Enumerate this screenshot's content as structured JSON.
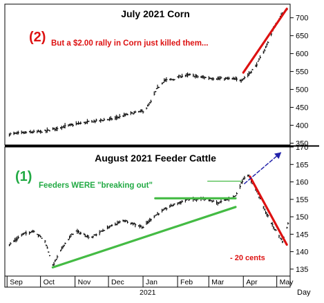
{
  "chart_data": [
    {
      "type": "ohlc",
      "title": "July 2021 Corn",
      "ylim": [
        345,
        738
      ],
      "yticks": [
        350,
        400,
        450,
        500,
        550,
        600,
        650,
        700
      ],
      "series_color": "#000000",
      "close_path": [
        [
          "2020-09-03",
          375
        ],
        [
          "2020-09-20",
          380
        ],
        [
          "2020-10-05",
          383
        ],
        [
          "2020-10-20",
          395
        ],
        [
          "2020-11-05",
          405
        ],
        [
          "2020-11-20",
          412
        ],
        [
          "2020-12-05",
          418
        ],
        [
          "2020-12-20",
          432
        ],
        [
          "2021-01-02",
          440
        ],
        [
          "2021-01-08",
          465
        ],
        [
          "2021-01-13",
          500
        ],
        [
          "2021-01-20",
          525
        ],
        [
          "2021-01-28",
          528
        ],
        [
          "2021-02-05",
          538
        ],
        [
          "2021-02-12",
          540
        ],
        [
          "2021-02-20",
          535
        ],
        [
          "2021-03-01",
          532
        ],
        [
          "2021-03-10",
          530
        ],
        [
          "2021-03-20",
          530
        ],
        [
          "2021-03-30",
          526
        ],
        [
          "2021-04-05",
          540
        ],
        [
          "2021-04-12",
          565
        ],
        [
          "2021-04-20",
          610
        ],
        [
          "2021-04-28",
          670
        ],
        [
          "2021-05-06",
          712
        ],
        [
          "2021-05-10",
          725
        ]
      ],
      "annotations": [
        {
          "label": "(2)",
          "color": "#dd1111"
        },
        {
          "text": "But a $2.00 rally in Corn just killed them...",
          "color": "#dd1111"
        }
      ],
      "trendlines": [
        {
          "name": "rally-line",
          "color": "#dd1111",
          "points": [
            [
              "2021-04-01",
              547
            ],
            [
              "2021-05-10",
              725
            ]
          ]
        }
      ]
    },
    {
      "type": "ohlc",
      "title": "August 2021 Feeder Cattle",
      "ylim": [
        133,
        170
      ],
      "yticks": [
        135,
        140,
        145,
        150,
        155,
        160,
        165,
        170
      ],
      "series_color": "#000000",
      "close_path": [
        [
          "2020-09-03",
          142
        ],
        [
          "2020-09-15",
          145
        ],
        [
          "2020-09-25",
          146
        ],
        [
          "2020-10-05",
          143
        ],
        [
          "2020-10-12",
          136
        ],
        [
          "2020-10-22",
          142
        ],
        [
          "2020-11-01",
          146
        ],
        [
          "2020-11-15",
          144
        ],
        [
          "2020-12-01",
          147
        ],
        [
          "2020-12-15",
          149
        ],
        [
          "2021-01-01",
          147
        ],
        [
          "2021-01-10",
          150
        ],
        [
          "2021-01-25",
          153
        ],
        [
          "2021-02-10",
          155
        ],
        [
          "2021-02-25",
          155
        ],
        [
          "2021-03-10",
          154
        ],
        [
          "2021-03-25",
          156
        ],
        [
          "2021-04-01",
          161
        ],
        [
          "2021-04-05",
          162
        ],
        [
          "2021-04-12",
          158
        ],
        [
          "2021-04-20",
          152
        ],
        [
          "2021-04-28",
          147
        ],
        [
          "2021-05-06",
          143
        ],
        [
          "2021-05-11",
          148
        ]
      ],
      "annotations": [
        {
          "label": "(1)",
          "color": "#22aa44"
        },
        {
          "text": "Feeders WERE \"breaking out\"",
          "color": "#22aa44"
        },
        {
          "text": "- 20 cents",
          "color": "#dd1111"
        }
      ],
      "trendlines": [
        {
          "name": "uptrend-support",
          "color": "#44bb44",
          "points": [
            [
              "2020-10-12",
              135.5
            ],
            [
              "2021-03-25",
              152.8
            ]
          ]
        },
        {
          "name": "breakout-resistance",
          "color": "#44bb44",
          "points": [
            [
              "2021-01-12",
              155.3
            ],
            [
              "2021-03-25",
              155.3
            ]
          ]
        },
        {
          "name": "breakout-pointer",
          "color": "#44bb44",
          "points": [
            [
              "2021-02-28",
              160.2
            ],
            [
              "2021-03-30",
              160.2
            ]
          ]
        },
        {
          "name": "decline-line",
          "color": "#dd1111",
          "points": [
            [
              "2021-04-07",
              161.5
            ],
            [
              "2021-05-10",
              142
            ]
          ]
        },
        {
          "name": "expected-move-arrow",
          "color": "#2222aa",
          "style": "dashed",
          "points": [
            [
              "2021-04-02",
              159.5
            ],
            [
              "2021-05-05",
              168.5
            ]
          ]
        }
      ]
    }
  ],
  "x_axis": {
    "months": [
      "Sep",
      "Oct",
      "Nov",
      "Dec",
      "Jan",
      "Feb",
      "Mar",
      "Apr",
      "May"
    ],
    "year_label": "2021",
    "period_label": "Day"
  }
}
